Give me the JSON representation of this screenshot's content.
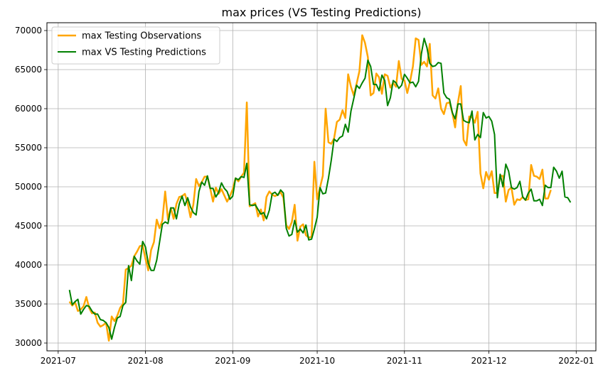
{
  "chart_data": {
    "type": "line",
    "title": "max prices (VS Testing Predictions)",
    "xlabel": "",
    "ylabel": "",
    "x_axis": "date",
    "xlim": [
      "2021-06-27",
      "2022-01-08"
    ],
    "ylim": [
      29000,
      71000
    ],
    "x_tick_values": [
      "2021-07-01",
      "2021-08-01",
      "2021-09-01",
      "2021-10-01",
      "2021-11-01",
      "2021-12-01",
      "2022-01-01"
    ],
    "x_tick_labels": [
      "2021-07",
      "2021-08",
      "2021-09",
      "2021-10",
      "2021-11",
      "2021-12",
      "2022-01"
    ],
    "y_ticks": [
      30000,
      35000,
      40000,
      45000,
      50000,
      55000,
      60000,
      65000,
      70000
    ],
    "y_tick_labels": [
      "30000",
      "35000",
      "40000",
      "45000",
      "50000",
      "55000",
      "60000",
      "65000",
      "70000"
    ],
    "grid": true,
    "legend_position": "top-left",
    "series": [
      {
        "name": "max Testing Observations",
        "color": "#ffa500",
        "start_date": "2021-07-05",
        "values": [
          35300,
          34800,
          35200,
          34100,
          34300,
          34700,
          35900,
          34500,
          33800,
          33900,
          32600,
          32100,
          32300,
          32600,
          30300,
          33400,
          32800,
          33500,
          34500,
          35000,
          39400,
          39600,
          39900,
          41100,
          41700,
          42400,
          42500,
          40800,
          39300,
          41900,
          42900,
          45800,
          44700,
          45700,
          49400,
          45800,
          47300,
          45900,
          47800,
          48700,
          48800,
          49100,
          47900,
          46100,
          47700,
          51000,
          50100,
          50600,
          51300,
          51300,
          49800,
          48100,
          49900,
          49100,
          49700,
          48900,
          48100,
          48800,
          49700,
          51100,
          50700,
          51300,
          51800,
          60800,
          47500,
          47700,
          47900,
          46200,
          47100,
          45700,
          48700,
          49400,
          49000,
          48800,
          49000,
          49300,
          48600,
          45100,
          44600,
          45500,
          47700,
          43100,
          44900,
          45200,
          43800,
          43500,
          43600,
          53200,
          48400,
          49900,
          51400,
          60000,
          55700,
          55500,
          56200,
          58300,
          58600,
          59800,
          58800,
          64400,
          62800,
          61700,
          63200,
          64800,
          69400,
          68400,
          66600,
          61700,
          62000,
          64500,
          64000,
          61900,
          64400,
          64200,
          62700,
          63300,
          62800,
          66100,
          63800,
          63600,
          62000,
          63500,
          65400,
          69000,
          68800,
          65600,
          66000,
          65400,
          68300,
          61700,
          61300,
          62600,
          60000,
          59300,
          60700,
          60800,
          59500,
          57600,
          60800,
          62900,
          56000,
          55300,
          59000,
          58900,
          58200,
          59600,
          51700,
          49800,
          51900,
          50900,
          52000,
          49200,
          49200,
          51400,
          51400,
          48100,
          49600,
          49900,
          47700,
          48400,
          48300,
          48700,
          48300,
          48400,
          52800,
          51400,
          51300,
          51000,
          52200,
          48500,
          48500,
          49600
        ]
      },
      {
        "name": "max VS Testing Predictions",
        "color": "#008000",
        "start_date": "2021-07-05",
        "values": [
          36800,
          34900,
          35300,
          35600,
          33700,
          34300,
          34800,
          34700,
          34100,
          33700,
          33700,
          33000,
          32900,
          32600,
          32000,
          30500,
          32000,
          33200,
          33400,
          34800,
          35200,
          39900,
          38000,
          41100,
          40500,
          40100,
          43000,
          42300,
          40200,
          39300,
          39300,
          40600,
          42900,
          45200,
          45500,
          45300,
          47300,
          47300,
          45900,
          47800,
          48800,
          47600,
          48600,
          47400,
          46700,
          46400,
          49400,
          50600,
          50200,
          51400,
          49800,
          49800,
          48700,
          49300,
          50500,
          49800,
          49400,
          48400,
          48800,
          51100,
          50900,
          51300,
          51200,
          53000,
          47700,
          47600,
          47700,
          47100,
          46500,
          46700,
          45900,
          47000,
          49100,
          49300,
          48900,
          49600,
          49200,
          44700,
          43700,
          43900,
          45700,
          44200,
          44600,
          44100,
          45100,
          43200,
          43300,
          44600,
          46100,
          49900,
          49100,
          49200,
          51100,
          53400,
          56100,
          55800,
          56300,
          56500,
          58000,
          57000,
          59700,
          61300,
          63000,
          62600,
          63300,
          63900,
          66200,
          65400,
          63100,
          63100,
          62300,
          64300,
          63600,
          60400,
          61400,
          63600,
          63300,
          62600,
          63000,
          64400,
          63900,
          63300,
          63400,
          62800,
          63500,
          67000,
          69000,
          67800,
          65800,
          65400,
          65500,
          65900,
          65800,
          62000,
          61400,
          61200,
          59500,
          58700,
          60600,
          60600,
          58500,
          58300,
          58200,
          59700,
          56000,
          56700,
          56300,
          59500,
          58800,
          59000,
          58400,
          56700,
          48600,
          51600,
          50000,
          52900,
          52000,
          49900,
          49700,
          49900,
          50700,
          48700,
          48300,
          49200,
          49700,
          48200,
          48200,
          48400,
          47600,
          50200,
          49900,
          49900,
          52500,
          52000,
          51100,
          52000,
          48700,
          48600,
          48000
        ]
      }
    ]
  }
}
